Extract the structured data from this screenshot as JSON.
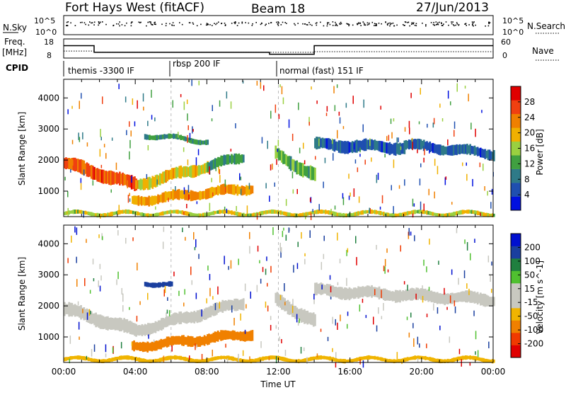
{
  "header": {
    "station": "Fort Hays West (fitACF)",
    "beam": "Beam 18",
    "date": "27/Jun/2013"
  },
  "noise_panel": {
    "left_label": "N.Sky",
    "left_ticks": [
      "10^5",
      "10^0"
    ],
    "right_ticks": [
      "10^5",
      "10^0"
    ],
    "right_label": "N.Search"
  },
  "freq_panel": {
    "left_label_1": "Freq.",
    "left_label_2": "[MHz]",
    "left_ticks": [
      "18",
      "8"
    ],
    "right_ticks": [
      "60",
      "0"
    ],
    "right_label": "Nave",
    "freq_series_mhz": [
      [
        0,
        14.5
      ],
      [
        1.7,
        14.5
      ],
      [
        1.7,
        11
      ],
      [
        11.5,
        11
      ],
      [
        11.5,
        10
      ],
      [
        14,
        10
      ],
      [
        14,
        14.5
      ],
      [
        24,
        14.5
      ]
    ],
    "nave_series": [
      [
        0,
        22
      ],
      [
        1.7,
        22
      ],
      [
        1.7,
        18
      ],
      [
        14,
        18
      ],
      [
        14,
        20
      ],
      [
        24,
        20
      ]
    ]
  },
  "cpid": {
    "label": "CPID",
    "segments": [
      {
        "start_hr": 0,
        "name": "themis -3300 IF"
      },
      {
        "start_hr": 6,
        "name": "rbsp 200 IF"
      },
      {
        "start_hr": 12,
        "name": "normal (fast) 151 IF"
      }
    ]
  },
  "colors": {
    "power": [
      "#0010e0",
      "#1f4fb0",
      "#2e7a88",
      "#40a040",
      "#9ad040",
      "#f0b000",
      "#f08000",
      "#f04010",
      "#e00000"
    ],
    "velocity": [
      "#e00000",
      "#f03a00",
      "#f08000",
      "#f0b400",
      "#c8c8c0",
      "#c8c8c0",
      "#50c030",
      "#1f7f3f",
      "#1a3f9f",
      "#0010d0"
    ]
  },
  "chart_data": [
    {
      "type": "heatmap",
      "name": "power",
      "xlabel": "",
      "ylabel": "Slant Range [km]",
      "xlim": [
        0,
        24
      ],
      "ylim": [
        180,
        4600
      ],
      "yticks": [
        1000,
        2000,
        3000,
        4000
      ],
      "ytick_labels": [
        "1000",
        "2000",
        "3000",
        "4000"
      ],
      "colorbar_label": "Power [dB]",
      "colorbar_ticks": [
        "4",
        "8",
        "12",
        "16",
        "20",
        "24",
        "28"
      ],
      "colorbar_range": [
        0,
        30
      ],
      "bands": [
        {
          "t0": 0.0,
          "t1": 4.0,
          "r_start": 1900,
          "r_end": 1200,
          "width": 400,
          "value": 24
        },
        {
          "t0": 4.0,
          "t1": 8.0,
          "r_start": 1200,
          "r_end": 1800,
          "width": 350,
          "value": 18
        },
        {
          "t0": 8.0,
          "t1": 10.0,
          "r_start": 1800,
          "r_end": 2100,
          "width": 300,
          "value": 10
        },
        {
          "t0": 3.8,
          "t1": 10.5,
          "r_start": 680,
          "r_end": 1100,
          "width": 300,
          "value": 20
        },
        {
          "t0": 4.5,
          "t1": 8.0,
          "r_start": 2800,
          "r_end": 2600,
          "width": 150,
          "value": 10
        },
        {
          "t0": 11.8,
          "t1": 14.0,
          "r_start": 2200,
          "r_end": 1500,
          "width": 400,
          "value": 12
        },
        {
          "t0": 14.0,
          "t1": 19.0,
          "r_start": 2500,
          "r_end": 2400,
          "width": 350,
          "value": 6
        },
        {
          "t0": 19.0,
          "t1": 24.0,
          "r_start": 2500,
          "r_end": 2200,
          "width": 300,
          "value": 6
        },
        {
          "t0": 0.0,
          "t1": 24.0,
          "r_start": 280,
          "r_end": 280,
          "width": 120,
          "value": 16
        }
      ]
    },
    {
      "type": "heatmap",
      "name": "velocity",
      "xlabel": "Time UT",
      "ylabel": "Slant Range [km]",
      "xlim": [
        0,
        24
      ],
      "ylim": [
        180,
        4600
      ],
      "yticks": [
        1000,
        2000,
        3000,
        4000
      ],
      "ytick_labels": [
        "1000",
        "2000",
        "3000",
        "4000"
      ],
      "xticks": [
        0,
        4,
        8,
        12,
        16,
        20,
        24
      ],
      "xtick_labels": [
        "00:00",
        "04:00",
        "08:00",
        "12:00",
        "16:00",
        "20:00",
        "00:00"
      ],
      "colorbar_label": "Velocity [m s^-1]",
      "colorbar_ticks": [
        "-200",
        "-100",
        "-50",
        "-15",
        "15",
        "50",
        "100",
        "200"
      ],
      "bands": [
        {
          "t0": 0.0,
          "t1": 4.0,
          "r_start": 1900,
          "r_end": 1200,
          "width": 400,
          "value": 0
        },
        {
          "t0": 4.0,
          "t1": 10.0,
          "r_start": 1200,
          "r_end": 2100,
          "width": 350,
          "value": 0
        },
        {
          "t0": 3.8,
          "t1": 10.5,
          "r_start": 680,
          "r_end": 1100,
          "width": 300,
          "value": -60
        },
        {
          "t0": 4.5,
          "t1": 6.0,
          "r_start": 2750,
          "r_end": 2650,
          "width": 150,
          "value": 150
        },
        {
          "t0": 11.8,
          "t1": 14.0,
          "r_start": 2200,
          "r_end": 1500,
          "width": 400,
          "value": 10
        },
        {
          "t0": 14.0,
          "t1": 24.0,
          "r_start": 2500,
          "r_end": 2200,
          "width": 350,
          "value": 0
        },
        {
          "t0": 0.0,
          "t1": 24.0,
          "r_start": 280,
          "r_end": 280,
          "width": 120,
          "value": -40
        }
      ]
    }
  ]
}
